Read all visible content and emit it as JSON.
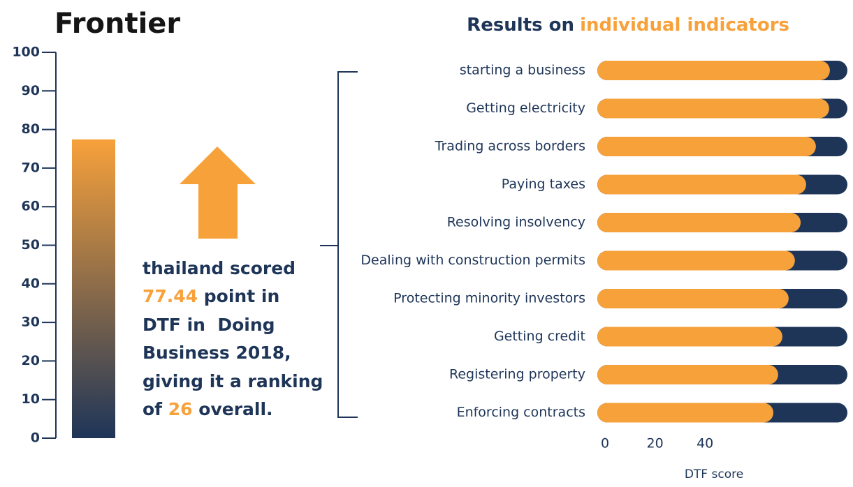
{
  "title": "Frontier",
  "annotation": [
    "thailand scored",
    " point in",
    "DTF in  Doing",
    "Business 2018,",
    "giving it a ranking",
    "of ",
    "26",
    " overall."
  ],
  "chart_data": [
    {
      "type": "column",
      "values": [
        77.44
      ],
      "ylim": [
        0,
        100
      ],
      "yticks": [
        0,
        10,
        20,
        30,
        40,
        50,
        60,
        70,
        80,
        90,
        100
      ],
      "colors": [
        "#f7a13b",
        "#1e3558"
      ]
    },
    {
      "type": "hbar",
      "title": "Results on",
      "title_highlight": "individual indicators",
      "categories": [
        "starting a business",
        "Getting electricity",
        "Trading across borders",
        "Paying taxes",
        "Resolving insolvency",
        "Dealing with construction permits",
        "Protecting minority investors",
        "Getting credit",
        "Registering property",
        "Enforcing contracts"
      ],
      "values": [
        93,
        92.7,
        87.4,
        83.5,
        81.3,
        79,
        76.5,
        74,
        72.3,
        70.4
      ],
      "color": "#f7a13b",
      "track_color": "#1e3558",
      "xlim": [
        0,
        100
      ],
      "xticks": [
        0,
        20,
        40
      ],
      "xlabel": "DTF score"
    }
  ]
}
